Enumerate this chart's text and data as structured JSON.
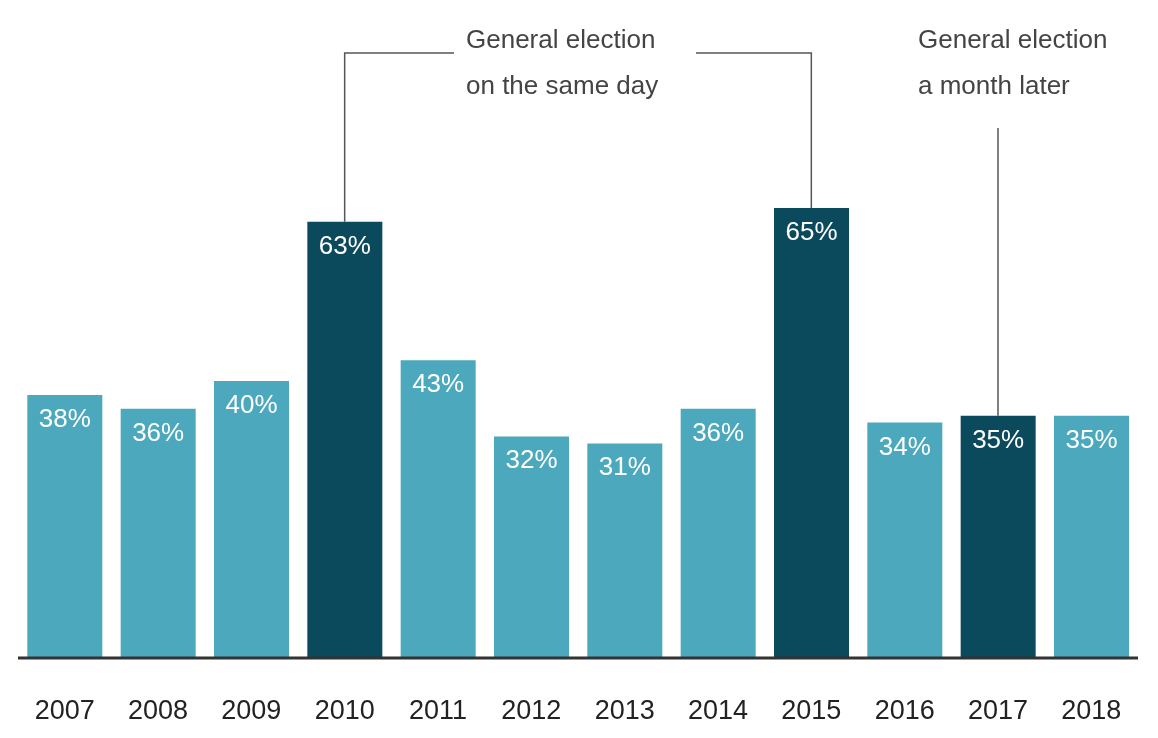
{
  "chart_data": {
    "type": "bar",
    "categories": [
      "2007",
      "2008",
      "2009",
      "2010",
      "2011",
      "2012",
      "2013",
      "2014",
      "2015",
      "2016",
      "2017",
      "2018"
    ],
    "values": [
      38,
      36,
      40,
      63,
      43,
      32,
      31,
      36,
      65,
      34,
      35,
      35
    ],
    "colors": [
      "#4ba8bd",
      "#4ba8bd",
      "#4ba8bd",
      "#0b4a5c",
      "#4ba8bd",
      "#4ba8bd",
      "#4ba8bd",
      "#4ba8bd",
      "#0b4a5c",
      "#4ba8bd",
      "#0b4a5c",
      "#4ba8bd"
    ],
    "value_labels": [
      "38%",
      "36%",
      "40%",
      "63%",
      "43%",
      "32%",
      "31%",
      "36%",
      "65%",
      "34%",
      "35%",
      "35%"
    ],
    "annotations": [
      "General election on the same day",
      {
        "text": "General election a month later",
        "x": "2017",
        "y": 35
      }
    ]
  }
}
